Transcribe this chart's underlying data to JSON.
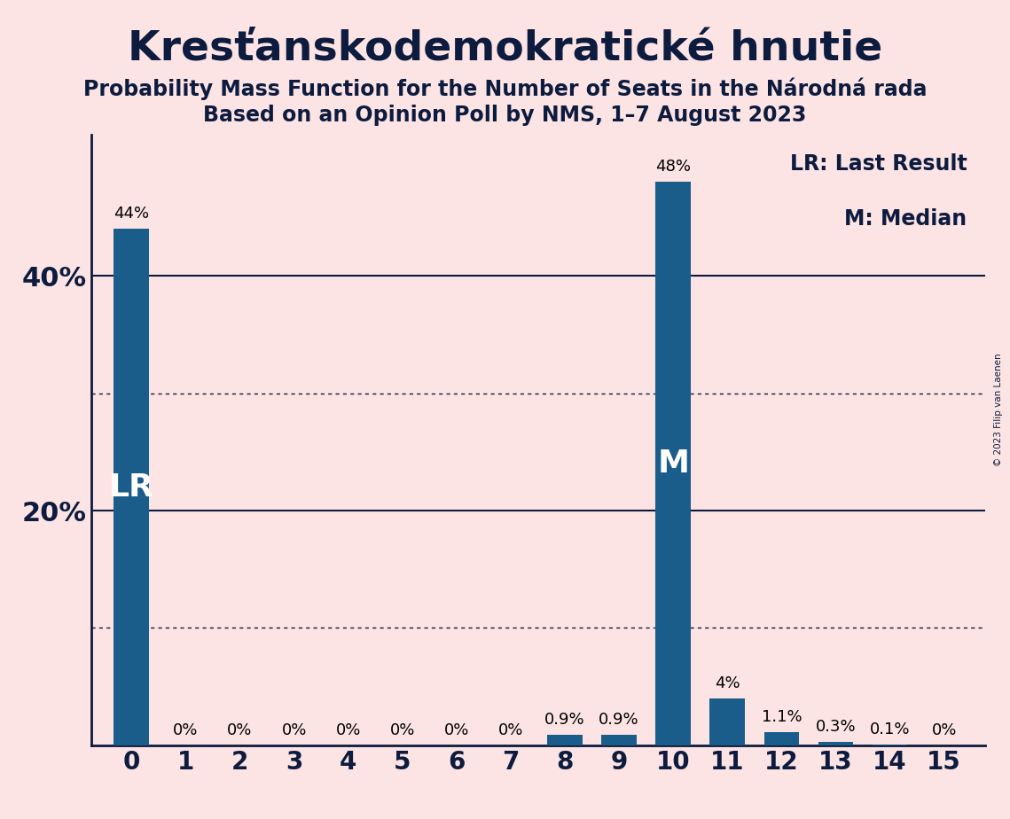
{
  "title": "Kresťanskodemokratické hnutie",
  "subtitle1": "Probability Mass Function for the Number of Seats in the Národná rada",
  "subtitle2": "Based on an Opinion Poll by NMS, 1–7 August 2023",
  "copyright": "© 2023 Filip van Laenen",
  "categories": [
    0,
    1,
    2,
    3,
    4,
    5,
    6,
    7,
    8,
    9,
    10,
    11,
    12,
    13,
    14,
    15
  ],
  "values": [
    44.0,
    0.0,
    0.0,
    0.0,
    0.0,
    0.0,
    0.0,
    0.0,
    0.9,
    0.9,
    48.0,
    4.0,
    1.1,
    0.3,
    0.1,
    0.0
  ],
  "value_labels": [
    "44%",
    "0%",
    "0%",
    "0%",
    "0%",
    "0%",
    "0%",
    "0%",
    "0.9%",
    "0.9%",
    "48%",
    "4%",
    "1.1%",
    "0.3%",
    "0.1%",
    "0%"
  ],
  "bar_color": "#1a5c8a",
  "background_color": "#fce4e4",
  "lr_bar": 0,
  "median_bar": 10,
  "lr_label": "LR",
  "median_label": "M",
  "annotation_line1": "LR: Last Result",
  "annotation_line2": "M: Median",
  "ylim_max": 52,
  "ytick_positions": [
    0,
    20,
    40
  ],
  "ytick_labels": [
    "",
    "20%",
    "40%"
  ],
  "solid_ytick_lines": [
    20,
    40
  ],
  "dotted_ytick_lines": [
    10,
    30
  ],
  "bar_width": 0.65,
  "title_fontsize": 34,
  "subtitle_fontsize": 17,
  "label_fontsize": 13,
  "annotation_fontsize": 17,
  "lr_m_fontsize": 26,
  "yticklabel_fontsize": 22,
  "xticklabel_fontsize": 20
}
